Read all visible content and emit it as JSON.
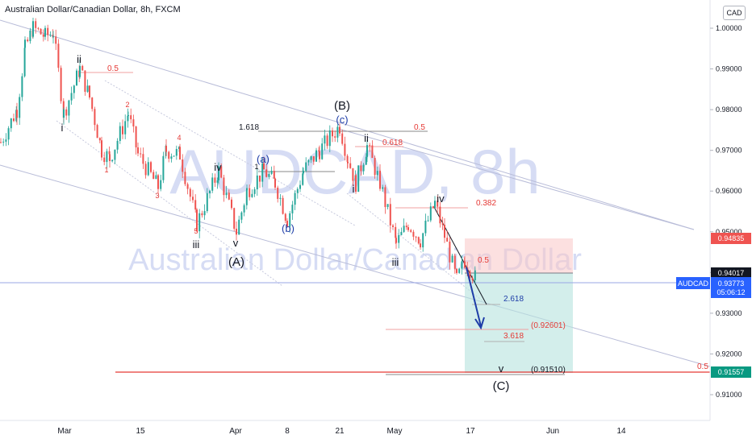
{
  "header": {
    "title": "Australian Dollar/Canadian Dollar, 8h, FXCM",
    "currency": "CAD"
  },
  "watermark": {
    "symbol": "AUDCAD, 8h",
    "name": "Australian Dollar/Canadian Dollar"
  },
  "colors": {
    "up": "#26a69a",
    "down": "#ef5350",
    "blue": "#2962ff",
    "wave_blue": "#1e3da8",
    "fib_red": "#e53935"
  },
  "chart_data": {
    "type": "candlestick",
    "y_axis": {
      "min": 0.905,
      "max": 1.005,
      "ticks": [
        "1.00000",
        "0.99000",
        "0.98000",
        "0.97000",
        "0.96000",
        "0.95000",
        "0.94000",
        "0.93000",
        "0.92000",
        "0.91000"
      ]
    },
    "x_axis": {
      "ticks": [
        "Mar",
        "15",
        "Apr",
        "8",
        "21",
        "May",
        "17",
        "Jun",
        "14"
      ]
    },
    "price_labels": {
      "stop": "0.94835",
      "entry": "0.94017",
      "current_symbol": "AUDCAD",
      "current_price": "0.93773",
      "countdown": "05:06:12",
      "target": "0.91557"
    },
    "wave_labels": [
      {
        "text": "ii"
      },
      {
        "text": "i"
      },
      {
        "text": "1"
      },
      {
        "text": "2"
      },
      {
        "text": "3"
      },
      {
        "text": "4"
      },
      {
        "text": "5"
      },
      {
        "text": "iii"
      },
      {
        "text": "iv"
      },
      {
        "text": "v"
      },
      {
        "text": "(A)"
      },
      {
        "text": "(a)"
      },
      {
        "text": "1"
      },
      {
        "text": "(b)"
      },
      {
        "text": "(B)"
      },
      {
        "text": "(c)"
      },
      {
        "text": "ii"
      },
      {
        "text": "i"
      },
      {
        "text": "iii"
      },
      {
        "text": "iv"
      },
      {
        "text": "v"
      },
      {
        "text": "(C)"
      }
    ],
    "fib_labels": [
      {
        "text": "0.5"
      },
      {
        "text": "1.618"
      },
      {
        "text": "0.5"
      },
      {
        "text": "0.618"
      },
      {
        "text": "0.382"
      },
      {
        "text": "0.5"
      },
      {
        "text": "2.618"
      },
      {
        "text": "(0.92601)"
      },
      {
        "text": "3.618"
      },
      {
        "text": "(0.91510)"
      },
      {
        "text": "0.5"
      }
    ]
  }
}
